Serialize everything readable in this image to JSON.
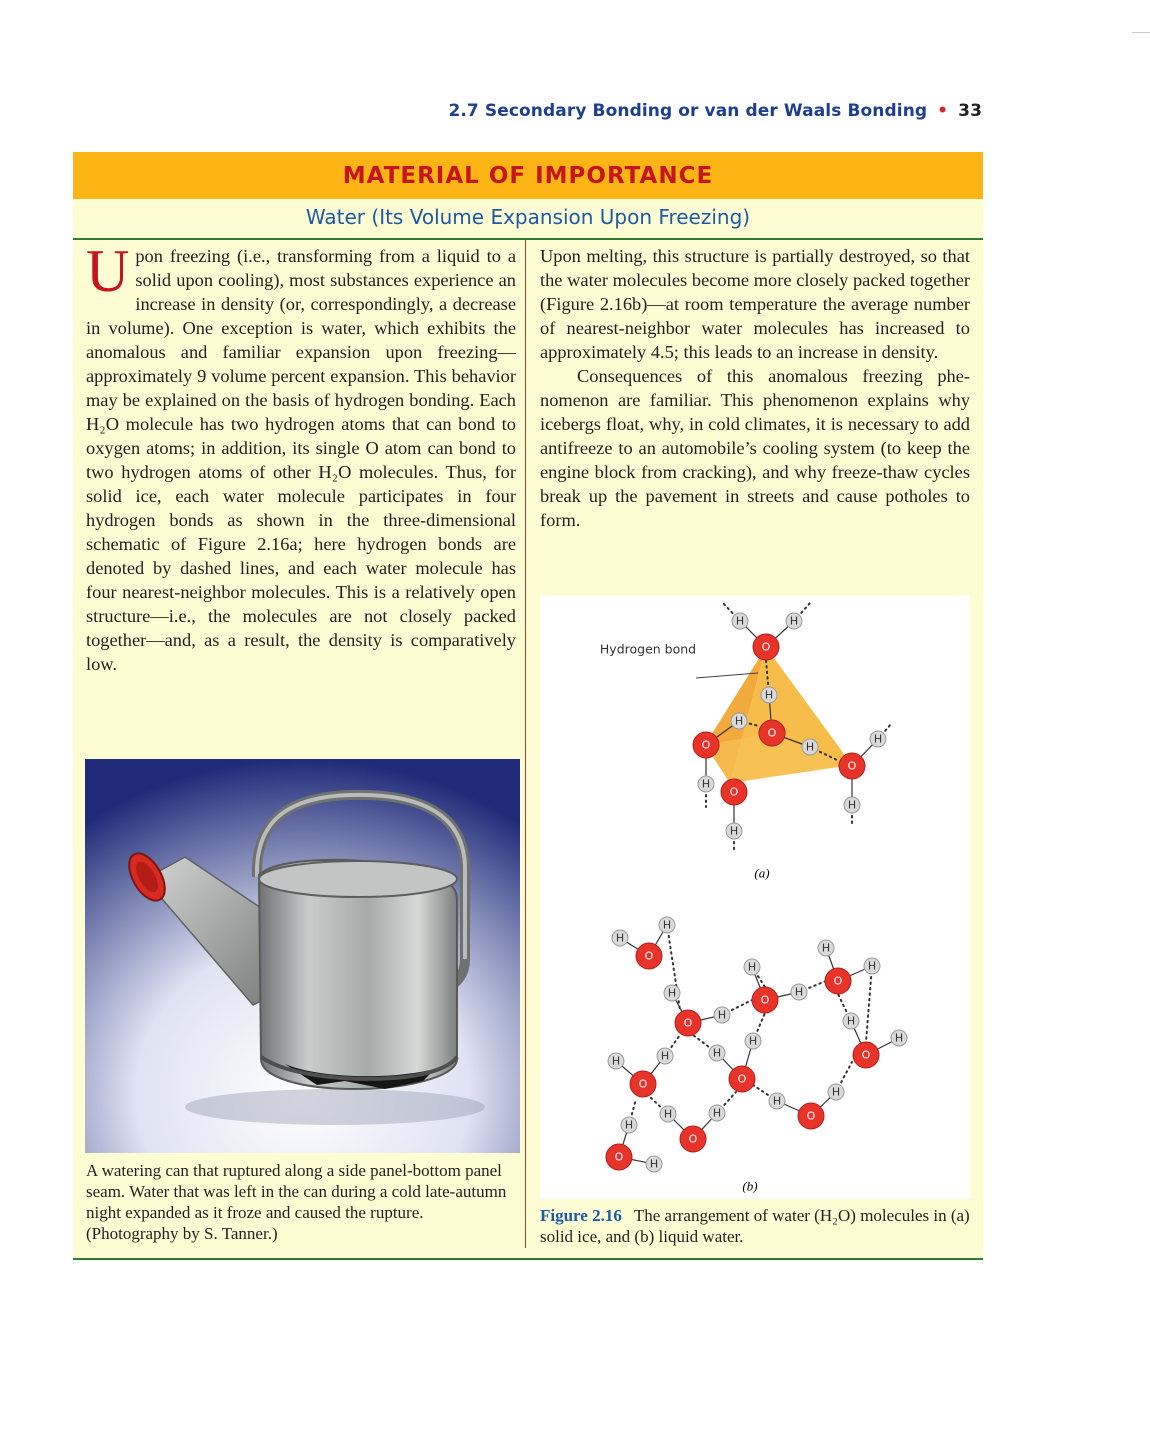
{
  "running_head": {
    "section_title": "2.7 Secondary Bonding or van der Waals Bonding",
    "bullet": "•",
    "page_number": "33"
  },
  "box": {
    "banner": "MATERIAL OF IMPORTANCE",
    "subtitle": "Water (Its Volume Expansion Upon Freezing)"
  },
  "left_column": {
    "dropcap": "U",
    "paragraph_1": "pon freezing (i.e., transforming from a liquid to a solid upon cooling), most substances ex­perience an increase in density (or, correspond­ingly, a decrease in volume). One exception is water, which exhibits the anomalous and famil­iar expansion upon freezing—approximately 9 vol­ume percent expansion. This behavior may be explained on the basis of hydrogen bonding. Each H₂O molecule has two hydrogen atoms that can bond to oxygen atoms; in addition, its single O atom can bond to two hydrogen atoms of other H₂O molecules. Thus, for solid ice, each water molecule participates in four hydrogen bonds as shown in the three-dimensional schematic of Figure 2.16a; here hydrogen bonds are denoted by dashed lines, and each water molecule has four nearest-neighbor molecules. This is a relatively open structure—i.e., the molecules are not closely packed together—and, as a result, the density is comparatively low."
  },
  "right_column": {
    "paragraph_1": "Upon melting, this structure is partially destroyed, so that the water molecules become more closely packed together (Figure 2.16b)—at room tempera­ture the average number of nearest-neighbor water molecules has increased to approximately 4.5; this leads to an increase in density.",
    "paragraph_2": "Consequences of this anomalous freezing phe­nomenon are familiar. This phenomenon explains why icebergs float, why, in cold climates, it is nec­essary to add antifreeze to an automobile’s cooling system (to keep the engine block from cracking), and why freeze-thaw cycles break up the pavement in streets and cause potholes to form."
  },
  "photo": {
    "caption": "A watering can that ruptured along a side panel-bottom panel seam. Water that was left in the can during a cold late-autumn night expanded as it froze and caused the rupture. (Photography by S. Tanner.)"
  },
  "figure": {
    "hydrogen_bond_label": "Hydrogen bond",
    "oxygen_symbol": "O",
    "hydrogen_symbol": "H",
    "panel_a_label": "(a)",
    "panel_b_label": "(b)",
    "figure_number": "Figure 2.16",
    "caption": "The arrangement of water (H₂O) molecules in (a) solid ice, and (b) liquid water.",
    "colors": {
      "oxygen": "#e8332a",
      "hydrogen": "#d9d9d9",
      "tetrahedron": "#f6b12c"
    }
  },
  "colors": {
    "banner_bg": "#fdb515",
    "banner_text": "#c4161c",
    "subtitle_text": "#1d5aa8",
    "box_bg": "#fefcd2",
    "rule": "#2e7d32"
  }
}
